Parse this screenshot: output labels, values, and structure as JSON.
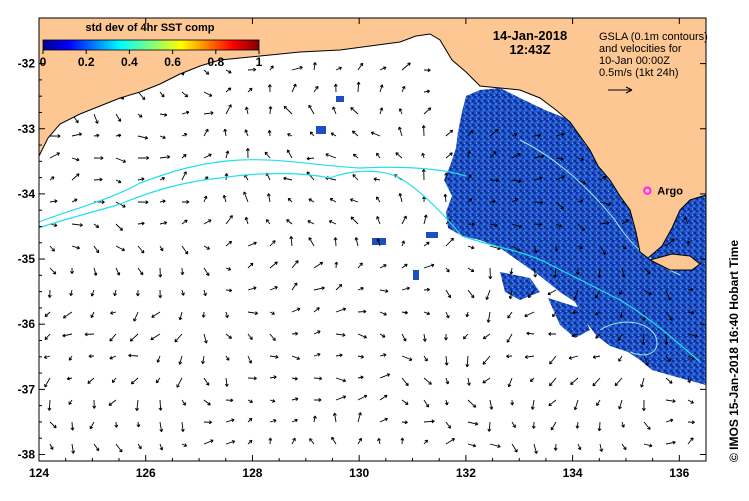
{
  "map": {
    "x_ticks": [
      "124",
      "126",
      "128",
      "130",
      "132",
      "134",
      "136"
    ],
    "y_ticks": [
      "-32",
      "-33",
      "-34",
      "-35",
      "-36",
      "-37",
      "-38"
    ],
    "lon_range": [
      124,
      136.5
    ],
    "lat_range": [
      -38.1,
      -31.3
    ]
  },
  "colorbar": {
    "title": "std dev of 4hr SST comp",
    "tick_labels": [
      "0",
      "0.2",
      "0.4",
      "0.6",
      "0.8",
      "1"
    ]
  },
  "header": {
    "date": "14-Jan-2018",
    "time": "12:43Z"
  },
  "legend": {
    "line1": "GSLA (0.1m contours)",
    "line2": "and velocities for",
    "line3": "10-Jan 00:00Z",
    "line4": "0.5m/s (1kt 24h)"
  },
  "argo": {
    "label": "Argo",
    "lon": 135.4,
    "lat": -33.95
  },
  "credit": "© IMOS 15-Jan-2018 16:40 Hobart Time",
  "colors": {
    "land": "#fdc793",
    "sea": "#ffffff",
    "sst": "#1c4fc4",
    "contour": "#22e0e8",
    "argo": "#ff22ff"
  }
}
